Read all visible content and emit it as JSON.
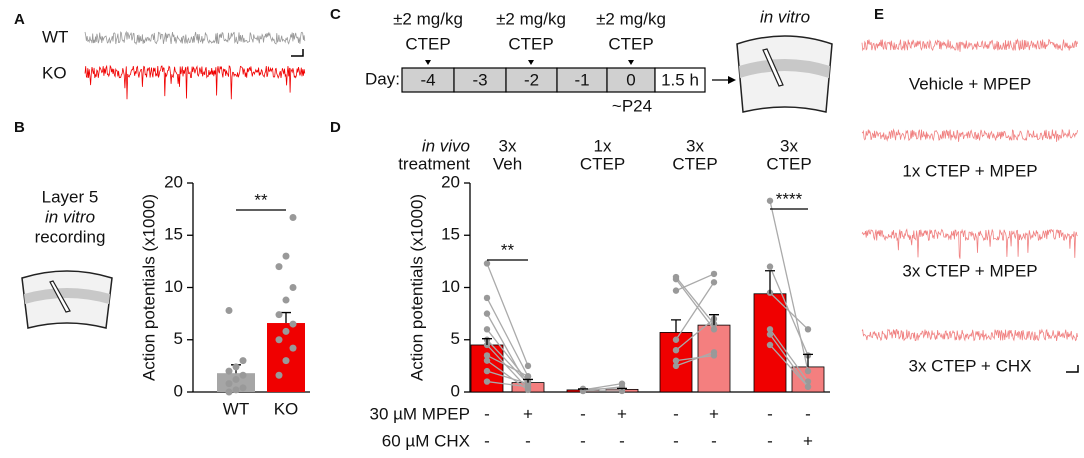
{
  "panel_labels": [
    "A",
    "B",
    "C",
    "D",
    "E"
  ],
  "panel_a": {
    "traces": [
      "WT",
      "KO"
    ]
  },
  "panel_b": {
    "annotation": [
      "Layer 5",
      "in vitro",
      "recording"
    ]
  },
  "panel_c": {
    "doses": [
      [
        "±2 mg/kg",
        "CTEP"
      ],
      [
        "±2 mg/kg",
        "CTEP"
      ],
      [
        "±2 mg/kg",
        "CTEP"
      ]
    ],
    "day_label": "Day:",
    "days": [
      "-4",
      "-3",
      "-2",
      "-1",
      "0",
      "1.5 h"
    ],
    "age": "~P24",
    "destination": "in vitro"
  },
  "panel_e": {
    "traces": [
      "Vehicle + MPEP",
      "1x CTEP + MPEP",
      "3x CTEP + MPEP",
      "3x CTEP + CHX"
    ]
  },
  "chart_data": [
    {
      "type": "bar",
      "ylabel": "Action potentials (x1000)",
      "categories": [
        "WT",
        "KO"
      ],
      "values": [
        1.8,
        6.6
      ],
      "errors": [
        0.8,
        1.0
      ],
      "colors": [
        "#a6a6a6",
        "#f00000"
      ],
      "points": [
        [
          0,
          0.2,
          0.4,
          0.8,
          1.2,
          1.6,
          2,
          2.4,
          3,
          7.8
        ],
        [
          1.6,
          3,
          4.2,
          5,
          5.8,
          6.5,
          7.4,
          8.8,
          10,
          12,
          13,
          16.7
        ]
      ],
      "significance": "**",
      "ylim": [
        0,
        20
      ],
      "yticks": [
        0,
        5,
        10,
        15,
        20
      ]
    },
    {
      "type": "paired-bar",
      "ylabel": "Action potentials (x1000)",
      "header": [
        "in vivo",
        "treatment"
      ],
      "groups": [
        [
          "3x",
          "Veh"
        ],
        [
          "1x",
          "CTEP"
        ],
        [
          "3x",
          "CTEP"
        ],
        [
          "3x",
          "CTEP"
        ]
      ],
      "values": [
        [
          4.5,
          0.9
        ],
        [
          0.2,
          0.25
        ],
        [
          5.7,
          6.4
        ],
        [
          9.4,
          2.4
        ]
      ],
      "errors": [
        [
          0.6,
          0.3
        ],
        [
          0.1,
          0.1
        ],
        [
          1.2,
          1.0
        ],
        [
          2.2,
          1.2
        ]
      ],
      "colors": [
        "#f00000",
        "#f47f7f"
      ],
      "pairs": [
        [
          [
            12.3,
            2.5
          ],
          [
            9,
            1.5
          ],
          [
            7.5,
            0.5
          ],
          [
            6,
            1
          ],
          [
            5,
            0.8
          ],
          [
            4.5,
            0.3
          ],
          [
            3.5,
            1.5
          ],
          [
            3,
            0.2
          ],
          [
            2,
            0.8
          ],
          [
            1,
            0.5
          ]
        ],
        [
          [
            0.2,
            0.8
          ],
          [
            0.1,
            0.5
          ],
          [
            0.3,
            0.3
          ],
          [
            0.1,
            0.1
          ]
        ],
        [
          [
            11,
            6.5
          ],
          [
            9.7,
            11.3
          ],
          [
            10.8,
            6
          ],
          [
            5,
            10.5
          ],
          [
            4,
            7
          ],
          [
            2.5,
            3.8
          ],
          [
            3,
            3.5
          ]
        ],
        [
          [
            18.3,
            2
          ],
          [
            12,
            3.5
          ],
          [
            9.5,
            6
          ],
          [
            6,
            1
          ],
          [
            5.5,
            0.5
          ],
          [
            4.5,
            0.5
          ]
        ]
      ],
      "significance": [
        "**",
        null,
        null,
        "****"
      ],
      "conditions": [
        {
          "name": "30 µM MPEP",
          "signs": [
            "-",
            "+",
            "-",
            "+",
            "-",
            "+",
            "-",
            "-"
          ]
        },
        {
          "name": "60 µM CHX",
          "signs": [
            "-",
            "-",
            "-",
            "-",
            "-",
            "-",
            "-",
            "+"
          ]
        }
      ],
      "ylim": [
        0,
        20
      ],
      "yticks": [
        0,
        5,
        10,
        15,
        20
      ]
    }
  ]
}
